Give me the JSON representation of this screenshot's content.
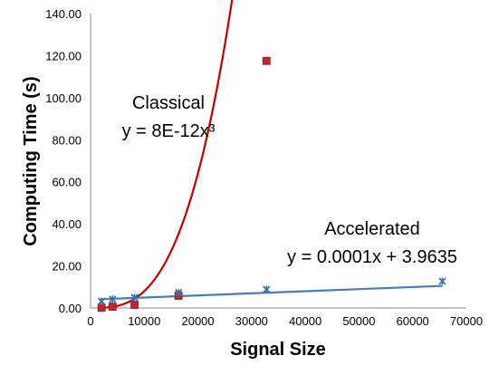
{
  "chart_data": {
    "type": "scatter",
    "xlabel": "Signal Size",
    "ylabel": "Computing Time (s)",
    "xlim": [
      0,
      70000
    ],
    "ylim": [
      0,
      140
    ],
    "x_ticks": [
      "0",
      "10000",
      "20000",
      "30000",
      "40000",
      "50000",
      "60000",
      "70000"
    ],
    "y_ticks": [
      "0.00",
      "20.00",
      "40.00",
      "60.00",
      "80.00",
      "100.00",
      "120.00",
      "140.00"
    ],
    "grid": false,
    "series": [
      {
        "name": "Classical",
        "marker": "square",
        "color": "#c0272d",
        "points": [
          [
            2048,
            0.1
          ],
          [
            4096,
            0.6
          ],
          [
            8192,
            1.5
          ],
          [
            16384,
            5.8
          ],
          [
            32768,
            117.5
          ]
        ],
        "trendline": {
          "kind": "power3",
          "coef": 8e-12,
          "equation": "y = 8E-12x³",
          "color": "#c00000"
        }
      },
      {
        "name": "Accelerated",
        "marker": "star",
        "color": "#3a6fb5",
        "points": [
          [
            2048,
            3.2
          ],
          [
            4096,
            4.2
          ],
          [
            8192,
            5.0
          ],
          [
            16384,
            7.3
          ],
          [
            32768,
            8.8
          ],
          [
            65536,
            12.7
          ]
        ],
        "trendline": {
          "kind": "linear",
          "slope": 0.0001,
          "intercept": 3.9635,
          "equation": "y = 0.0001x + 3.9635",
          "color": "#4a7ebb"
        }
      }
    ]
  }
}
